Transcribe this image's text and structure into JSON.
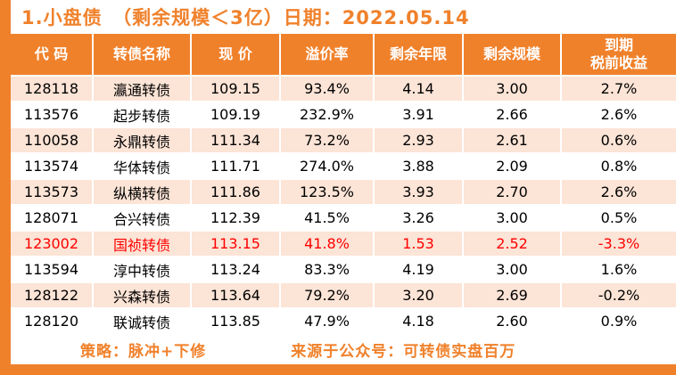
{
  "page": {
    "title": "1.小盘债　（剩余规模＜3亿）日期：2022.05.14",
    "accent_color": "#F0812B",
    "alt_row_color": "#FCE4D6",
    "highlight_text_color": "#FF0000"
  },
  "chart_data": {
    "type": "table",
    "title": "1.小盘债（剩余规模＜3亿）日期：2022.05.14",
    "columns": [
      "代 码",
      "转债名称",
      "现 价",
      "溢价率",
      "剩余年限",
      "剩余规模",
      "到期\n税前收益"
    ],
    "rows": [
      {
        "code": "128118",
        "name": "瀛通转债",
        "price": "109.15",
        "premium_rate": "93.4%",
        "remaining_years": "4.14",
        "remaining_scale": "3.00",
        "ytm_pretax": "2.7%",
        "highlight": false
      },
      {
        "code": "113576",
        "name": "起步转债",
        "price": "109.19",
        "premium_rate": "232.9%",
        "remaining_years": "3.91",
        "remaining_scale": "2.66",
        "ytm_pretax": "2.6%",
        "highlight": false
      },
      {
        "code": "110058",
        "name": "永鼎转债",
        "price": "111.34",
        "premium_rate": "73.2%",
        "remaining_years": "2.93",
        "remaining_scale": "2.61",
        "ytm_pretax": "0.6%",
        "highlight": false
      },
      {
        "code": "113574",
        "name": "华体转债",
        "price": "111.71",
        "premium_rate": "274.0%",
        "remaining_years": "3.88",
        "remaining_scale": "2.09",
        "ytm_pretax": "0.8%",
        "highlight": false
      },
      {
        "code": "113573",
        "name": "纵横转债",
        "price": "111.86",
        "premium_rate": "123.5%",
        "remaining_years": "3.93",
        "remaining_scale": "2.70",
        "ytm_pretax": "2.6%",
        "highlight": false
      },
      {
        "code": "128071",
        "name": "合兴转债",
        "price": "112.39",
        "premium_rate": "41.5%",
        "remaining_years": "3.26",
        "remaining_scale": "3.00",
        "ytm_pretax": "0.5%",
        "highlight": false
      },
      {
        "code": "123002",
        "name": "国祯转债",
        "price": "113.15",
        "premium_rate": "41.8%",
        "remaining_years": "1.53",
        "remaining_scale": "2.52",
        "ytm_pretax": "-3.3%",
        "highlight": true
      },
      {
        "code": "113594",
        "name": "淳中转债",
        "price": "113.24",
        "premium_rate": "83.3%",
        "remaining_years": "4.19",
        "remaining_scale": "3.00",
        "ytm_pretax": "1.6%",
        "highlight": false
      },
      {
        "code": "128122",
        "name": "兴森转债",
        "price": "113.64",
        "premium_rate": "79.2%",
        "remaining_years": "3.20",
        "remaining_scale": "2.69",
        "ytm_pretax": "-0.2%",
        "highlight": false
      },
      {
        "code": "128120",
        "name": "联诚转债",
        "price": "113.85",
        "premium_rate": "47.9%",
        "remaining_years": "4.18",
        "remaining_scale": "2.60",
        "ytm_pretax": "0.9%",
        "highlight": false
      }
    ]
  },
  "footer": {
    "strategy": "策略：脉冲+下修",
    "source": "来源于公众号：可转债实盘百万"
  }
}
